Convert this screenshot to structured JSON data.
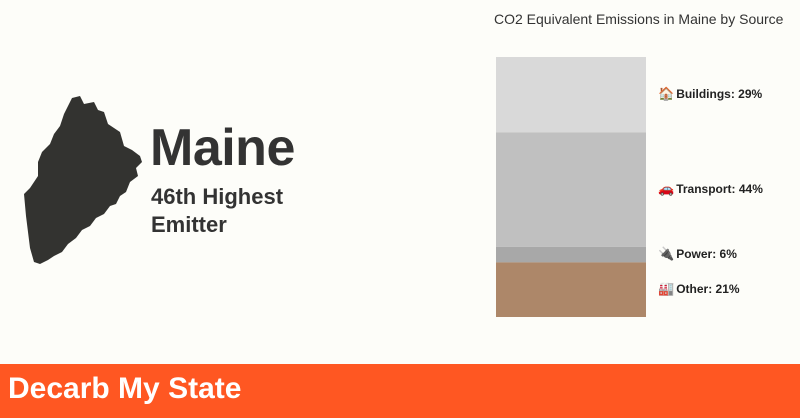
{
  "state": {
    "name": "Maine",
    "rank_line1": "46th Highest",
    "rank_line2": "Emitter",
    "map_color": "#333330"
  },
  "chart_data": {
    "type": "bar",
    "stacked": true,
    "title": "CO2 Equivalent Emissions in Maine by Source",
    "ylim": [
      0,
      100
    ],
    "categories": [
      "Maine"
    ],
    "series": [
      {
        "name": "Buildings",
        "values": [
          29
        ],
        "label": "Buildings: 29%",
        "icon": "🏠",
        "color": "#d9d9d9"
      },
      {
        "name": "Transport",
        "values": [
          44
        ],
        "label": "Transport: 44%",
        "icon": "🚗",
        "color": "#c0c0c0"
      },
      {
        "name": "Power",
        "values": [
          6
        ],
        "label": "Power: 6%",
        "icon": "🔌",
        "color": "#a8a8a8"
      },
      {
        "name": "Other",
        "values": [
          21
        ],
        "label": "Other: 21%",
        "icon": "🏭",
        "color": "#ad8769"
      }
    ]
  },
  "footer": {
    "brand": "Decarb My State",
    "color": "#ff5722"
  }
}
